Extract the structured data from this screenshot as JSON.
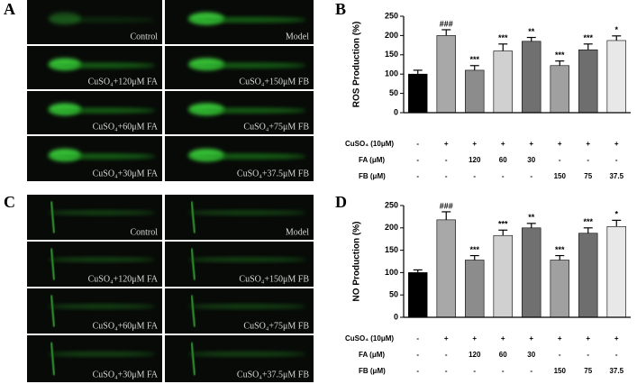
{
  "panel_labels": [
    "A",
    "B",
    "C",
    "D"
  ],
  "images": {
    "A": [
      "Control",
      "Model",
      "CuSO₄+120μM FA",
      "CuSO₄+150μM FB",
      "CuSO₄+60μM FA",
      "CuSO₄+75μM FB",
      "CuSO₄+30μM FA",
      "CuSO₄+37.5μM FB"
    ],
    "C": [
      "Control",
      "Model",
      "CuSO₄+120μM FA",
      "CuSO₄+150μM FB",
      "CuSO₄+60μM FA",
      "CuSO₄+75μM FB",
      "CuSO₄+30μM FA",
      "CuSO₄+37.5μM FB"
    ]
  },
  "chart_data": [
    {
      "type": "bar",
      "ylabel": "ROS Production (%)",
      "categories": [
        null,
        null,
        null,
        null,
        null,
        null,
        null,
        null
      ],
      "values": [
        100,
        200,
        110,
        160,
        185,
        122,
        163,
        187
      ],
      "errors": [
        10,
        15,
        12,
        18,
        10,
        12,
        15,
        12
      ],
      "annotations": [
        null,
        "###",
        "***",
        "***",
        "**",
        "***",
        "***",
        "*"
      ],
      "colors": [
        "#000000",
        "#a8a8a8",
        "#8c8c8c",
        "#d0d0d0",
        "#707070",
        "#a0a0a0",
        "#6e6e6e",
        "#e8e8e8"
      ],
      "ylim": [
        0,
        250
      ],
      "yticks": [
        0,
        50,
        100,
        150,
        200,
        250
      ],
      "treatments": [
        {
          "label": "CuSO₄ (10μM)",
          "cells": [
            "-",
            "+",
            "+",
            "+",
            "+",
            "+",
            "+",
            "+"
          ]
        },
        {
          "label": "FA (μM)",
          "cells": [
            "-",
            "-",
            "120",
            "60",
            "30",
            "-",
            "-",
            "-"
          ]
        },
        {
          "label": "FB (μM)",
          "cells": [
            "-",
            "-",
            "-",
            "-",
            "-",
            "150",
            "75",
            "37.5"
          ]
        }
      ]
    },
    {
      "type": "bar",
      "ylabel": "NO Production (%)",
      "categories": [
        null,
        null,
        null,
        null,
        null,
        null,
        null,
        null
      ],
      "values": [
        100,
        218,
        128,
        183,
        200,
        128,
        188,
        203
      ],
      "errors": [
        6,
        18,
        10,
        12,
        10,
        10,
        12,
        14
      ],
      "annotations": [
        null,
        "###",
        "***",
        "***",
        "**",
        "***",
        "***",
        "*"
      ],
      "colors": [
        "#000000",
        "#a8a8a8",
        "#8c8c8c",
        "#d0d0d0",
        "#707070",
        "#a0a0a0",
        "#6e6e6e",
        "#e8e8e8"
      ],
      "ylim": [
        0,
        250
      ],
      "yticks": [
        0,
        50,
        100,
        150,
        200,
        250
      ],
      "treatments": [
        {
          "label": "CuSO₄ (10μM)",
          "cells": [
            "-",
            "+",
            "+",
            "+",
            "+",
            "+",
            "+",
            "+"
          ]
        },
        {
          "label": "FA (μM)",
          "cells": [
            "-",
            "-",
            "120",
            "60",
            "30",
            "-",
            "-",
            "-"
          ]
        },
        {
          "label": "FB (μM)",
          "cells": [
            "-",
            "-",
            "-",
            "-",
            "-",
            "150",
            "75",
            "37.5"
          ]
        }
      ]
    }
  ]
}
